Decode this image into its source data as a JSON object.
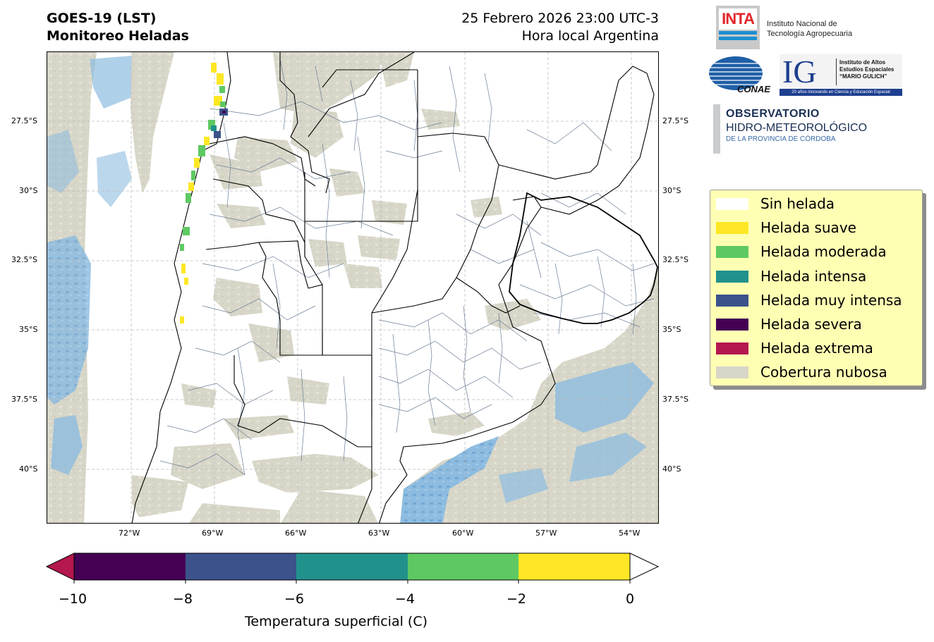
{
  "header": {
    "title_line1": "GOES-19 (LST)",
    "title_line2": "Monitoreo Heladas",
    "datetime": "25 Febrero 2026 23:00 UTC-3",
    "timezone_label": "Hora local Argentina"
  },
  "map": {
    "lat_ticks": [
      "27.5°S",
      "30°S",
      "32.5°S",
      "35°S",
      "37.5°S",
      "40°S"
    ],
    "lon_ticks": [
      "72°W",
      "69°W",
      "66°W",
      "63°W",
      "60°W",
      "57°W",
      "54°W"
    ],
    "colors": {
      "cloud": "#d7d6c8",
      "water": "#85b6dc",
      "boundary_country": "#000000",
      "boundary_department": "#6a7d96",
      "grid": "#bdbdbd"
    }
  },
  "legend": {
    "items": [
      {
        "label": "Sin helada",
        "color": "#ffffff"
      },
      {
        "label": "Helada suave",
        "color": "#fde725"
      },
      {
        "label": "Helada moderada",
        "color": "#5ec962"
      },
      {
        "label": "Helada intensa",
        "color": "#21918c"
      },
      {
        "label": "Helada muy intensa",
        "color": "#3b528b"
      },
      {
        "label": "Helada severa",
        "color": "#440154"
      },
      {
        "label": "Helada extrema",
        "color": "#b5174f"
      },
      {
        "label": "Cobertura nubosa",
        "color": "#d7d6c8"
      }
    ]
  },
  "colorbar": {
    "ticks": [
      "−10",
      "−8",
      "−6",
      "−4",
      "−2",
      "0"
    ],
    "title": "Temperatura superficial (C)",
    "segments": [
      "#440154",
      "#3b528b",
      "#21918c",
      "#5ec962",
      "#fde725"
    ],
    "under_color": "#b5174f",
    "over_color": "#ffffff"
  },
  "logos": {
    "inta_mark": "INTA",
    "inta_name_line1": "Instituto Nacional de",
    "inta_name_line2": "Tecnología Agropecuaria",
    "conae": "CONAE",
    "ig_mark": "IG",
    "ig_line1": "Instituto de Altos",
    "ig_line2": "Estudios Espaciales",
    "ig_line3": "“MARIO GULICH”",
    "ig_tagline": "20 años innovando en Ciencia y Educación Espacial",
    "obs_line1": "OBSERVATORIO",
    "obs_line2": "HIDRO-METEOROLÓGICO",
    "obs_line3": "DE LA PROVINCIA DE CÓRDOBA"
  }
}
